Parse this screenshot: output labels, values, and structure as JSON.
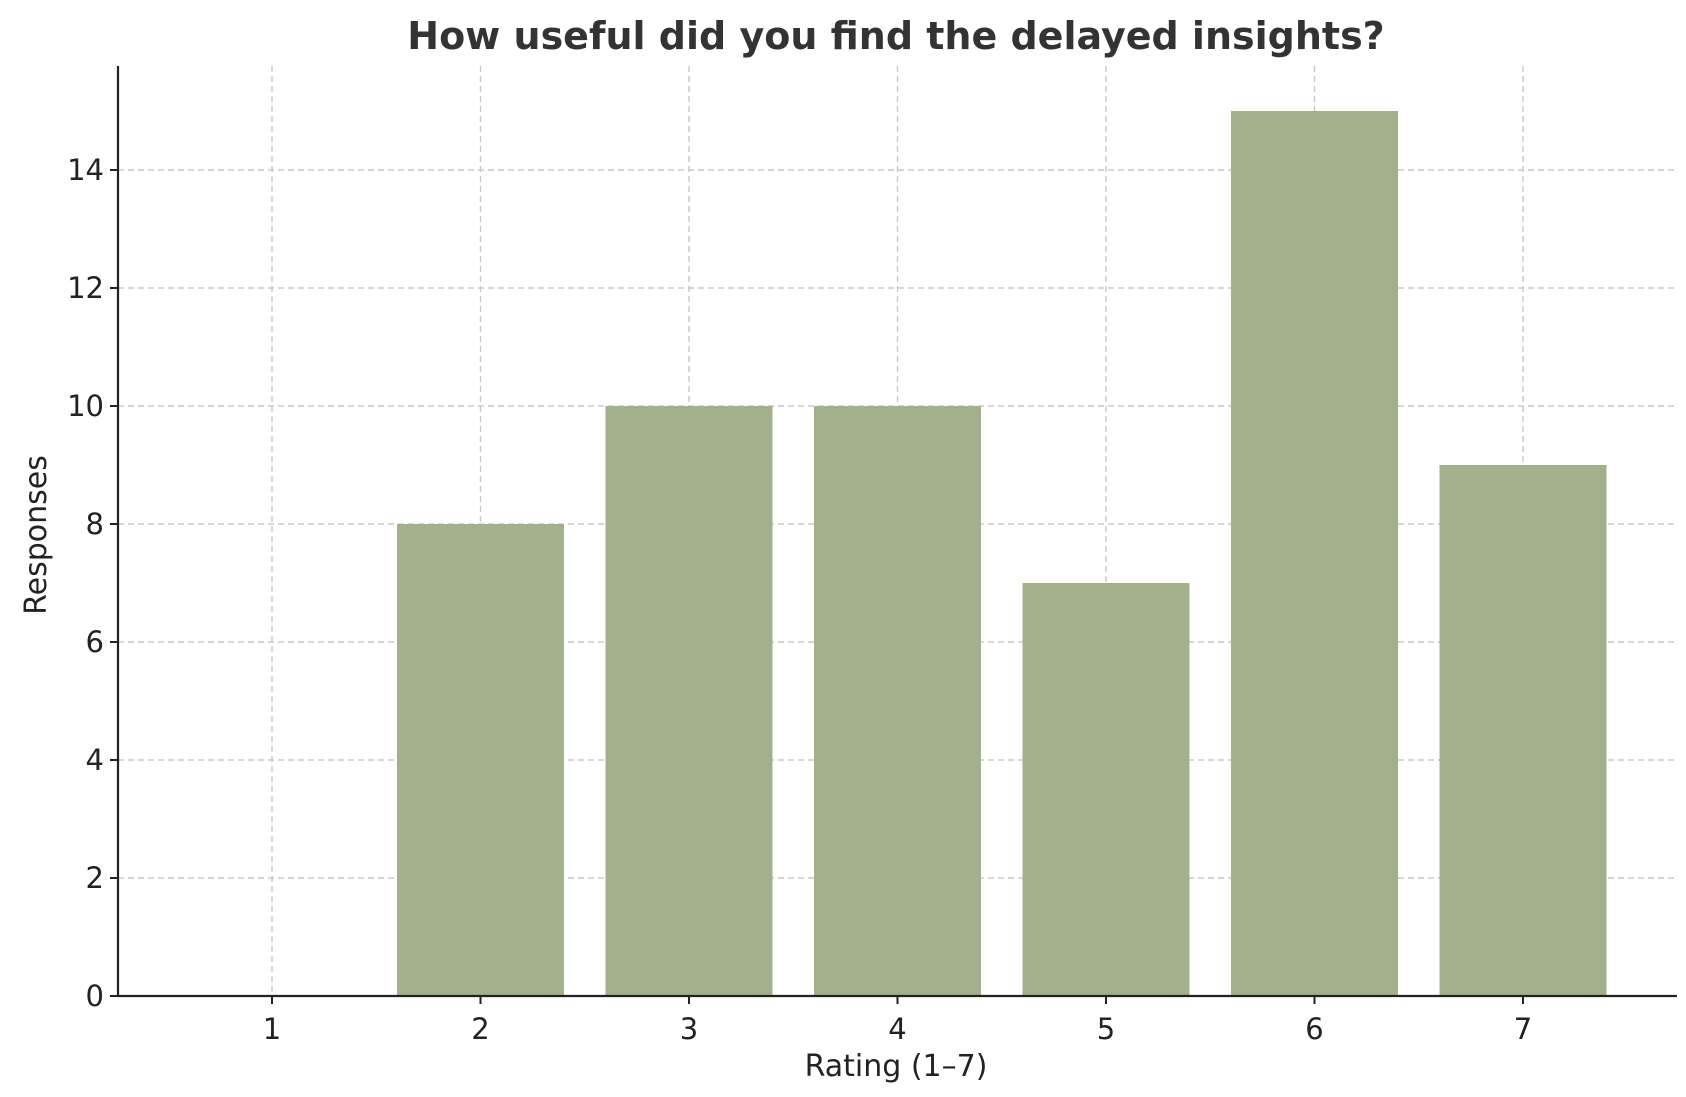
{
  "chart_data": {
    "type": "bar",
    "title": "How useful did you find the delayed insights?",
    "xlabel": "Rating (1–7)",
    "ylabel": "Responses",
    "categories": [
      "1",
      "2",
      "3",
      "4",
      "5",
      "6",
      "7"
    ],
    "values": [
      0,
      8,
      10,
      10,
      7,
      15,
      9
    ],
    "yticks": [
      0,
      2,
      4,
      6,
      8,
      10,
      12,
      14
    ],
    "ylim": [
      0,
      15.75
    ],
    "grid": true,
    "legend": "none",
    "bar_color": "#a2b08b"
  }
}
